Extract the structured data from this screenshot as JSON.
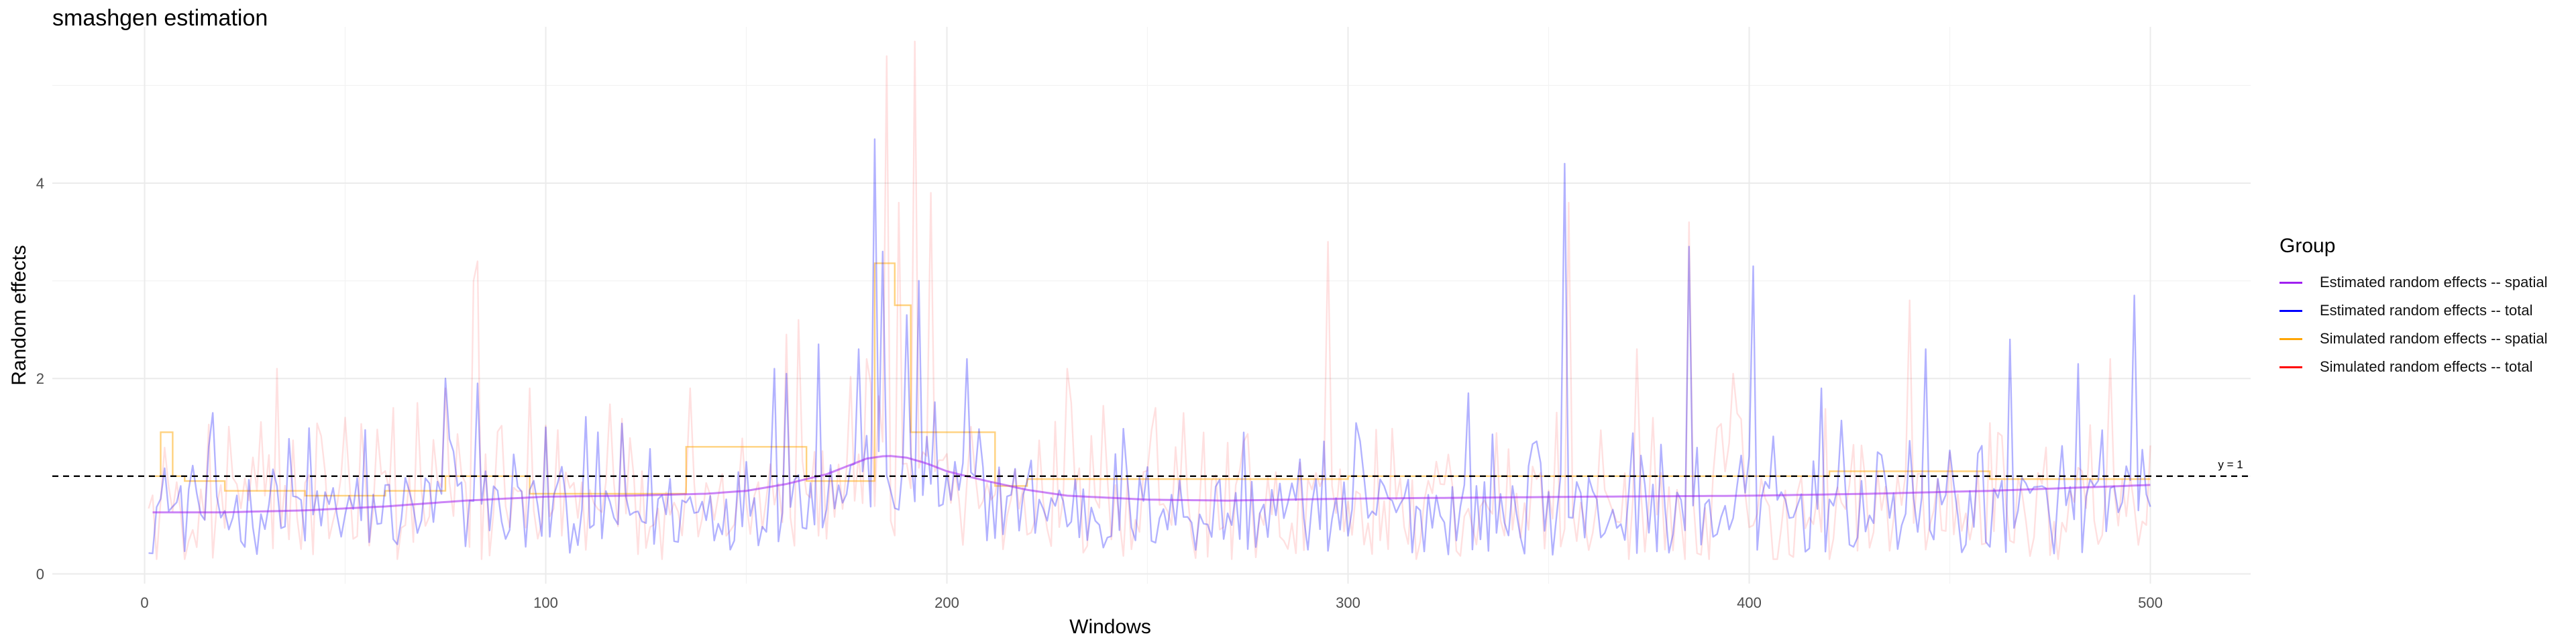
{
  "chart_data": {
    "type": "line",
    "title": "smashgen estimation",
    "xlabel": "Windows",
    "ylabel": "Random effects",
    "xlim": [
      -23,
      525
    ],
    "ylim": [
      -0.1,
      5.6
    ],
    "x_ticks": [
      0,
      100,
      200,
      300,
      400,
      500
    ],
    "y_ticks": [
      0,
      2,
      4
    ],
    "grid": true,
    "legend_title": "Group",
    "legend_position": "right",
    "reference_line": {
      "y": 1,
      "label": "y = 1",
      "style": "dashed",
      "color": "#000000"
    },
    "series": [
      {
        "name": "Estimated random effects -- spatial",
        "color": "#a020f0",
        "style": "smooth",
        "x": [
          2,
          20,
          40,
          60,
          80,
          100,
          120,
          140,
          150,
          160,
          170,
          175,
          180,
          185,
          190,
          195,
          200,
          210,
          220,
          230,
          250,
          270,
          300,
          330,
          360,
          400,
          430,
          460,
          480,
          500
        ],
        "values": [
          0.63,
          0.63,
          0.65,
          0.69,
          0.75,
          0.79,
          0.8,
          0.82,
          0.85,
          0.92,
          1.02,
          1.1,
          1.18,
          1.21,
          1.19,
          1.13,
          1.05,
          0.95,
          0.86,
          0.8,
          0.76,
          0.75,
          0.77,
          0.78,
          0.79,
          0.8,
          0.82,
          0.85,
          0.88,
          0.91
        ]
      },
      {
        "name": "Estimated random effects -- total",
        "color": "#0000ff",
        "style": "noisy",
        "opacity": 0.3,
        "spikes": [
          [
            75,
            2.0
          ],
          [
            83,
            1.95
          ],
          [
            100,
            1.5
          ],
          [
            113,
            1.45
          ],
          [
            157,
            2.1
          ],
          [
            160,
            2.05
          ],
          [
            168,
            2.35
          ],
          [
            178,
            2.3
          ],
          [
            182,
            4.45
          ],
          [
            184,
            3.3
          ],
          [
            190,
            2.65
          ],
          [
            193,
            3.0
          ],
          [
            205,
            2.2
          ],
          [
            330,
            1.85
          ],
          [
            354,
            4.2
          ],
          [
            385,
            3.35
          ],
          [
            401,
            3.15
          ],
          [
            418,
            1.9
          ],
          [
            444,
            2.3
          ],
          [
            465,
            2.4
          ],
          [
            482,
            2.15
          ],
          [
            496,
            2.85
          ]
        ]
      },
      {
        "name": "Simulated random effects -- spatial",
        "color": "#ffa500",
        "style": "step",
        "steps": [
          [
            1,
            1.0
          ],
          [
            4,
            1.45
          ],
          [
            7,
            1.0
          ],
          [
            10,
            0.95
          ],
          [
            20,
            0.85
          ],
          [
            40,
            0.8
          ],
          [
            60,
            0.85
          ],
          [
            75,
            1.0
          ],
          [
            96,
            0.82
          ],
          [
            135,
            1.3
          ],
          [
            165,
            0.95
          ],
          [
            182,
            3.18
          ],
          [
            187,
            2.75
          ],
          [
            191,
            1.45
          ],
          [
            212,
            0.9
          ],
          [
            220,
            0.97
          ],
          [
            300,
            1.0
          ],
          [
            420,
            1.05
          ],
          [
            460,
            0.97
          ],
          [
            500,
            0.97
          ]
        ]
      },
      {
        "name": "Simulated random effects -- total",
        "color": "#ff0000",
        "style": "noisy",
        "opacity": 0.12,
        "spikes": [
          [
            33,
            2.1
          ],
          [
            50,
            1.6
          ],
          [
            62,
            1.7
          ],
          [
            68,
            1.75
          ],
          [
            75,
            1.9
          ],
          [
            82,
            3.0
          ],
          [
            83,
            3.2
          ],
          [
            96,
            1.9
          ],
          [
            136,
            1.9
          ],
          [
            160,
            2.45
          ],
          [
            163,
            2.6
          ],
          [
            180,
            2.2
          ],
          [
            185,
            5.3
          ],
          [
            188,
            3.8
          ],
          [
            192,
            5.45
          ],
          [
            196,
            3.9
          ],
          [
            230,
            2.1
          ],
          [
            252,
            1.7
          ],
          [
            295,
            3.4
          ],
          [
            355,
            3.8
          ],
          [
            372,
            2.3
          ],
          [
            385,
            3.6
          ],
          [
            396,
            2.05
          ],
          [
            440,
            2.8
          ],
          [
            490,
            2.2
          ]
        ]
      }
    ]
  }
}
